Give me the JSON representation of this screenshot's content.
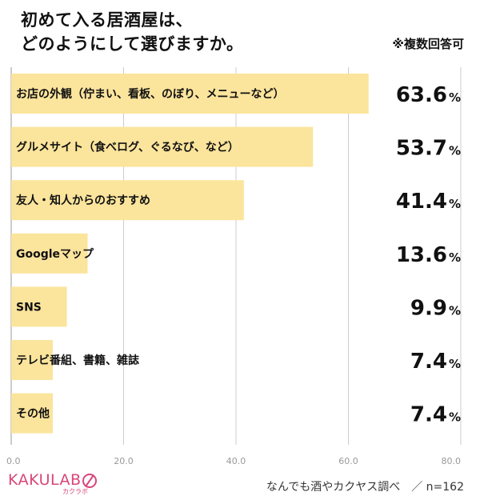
{
  "title": {
    "line1": "初めて入る居酒屋は、",
    "line2": "どのようにして選びますか。"
  },
  "note": "※複数回答可",
  "footer": {
    "source": "なんでも酒やカクヤス調べ　／ n=162",
    "logo_text": "KAKULAB",
    "logo_sub": "カクラボ"
  },
  "colors": {
    "bar": "#fbe49c",
    "grid": "#cccccc",
    "text": "#111111",
    "logo": "#d9467a"
  },
  "chart_data": {
    "type": "bar",
    "orientation": "horizontal",
    "categories": [
      "お店の外観（佇まい、看板、のぼり、メニューなど）",
      "グルメサイト（食べログ、ぐるなび、など）",
      "友人・知人からのおすすめ",
      "Googleマップ",
      "SNS",
      "テレビ番組、書籍、雑誌",
      "その他"
    ],
    "values": [
      63.6,
      53.7,
      41.4,
      13.6,
      9.9,
      7.4,
      7.4
    ],
    "value_labels": [
      "63.6",
      "53.7",
      "41.4",
      "13.6",
      "9.9",
      "7.4",
      "7.4"
    ],
    "unit": "%",
    "xlim": [
      0,
      80
    ],
    "ticks": [
      "0.0",
      "20.0",
      "40.0",
      "60.0",
      "80.0"
    ],
    "tick_values": [
      0,
      20,
      40,
      60,
      80
    ],
    "grid": true
  }
}
